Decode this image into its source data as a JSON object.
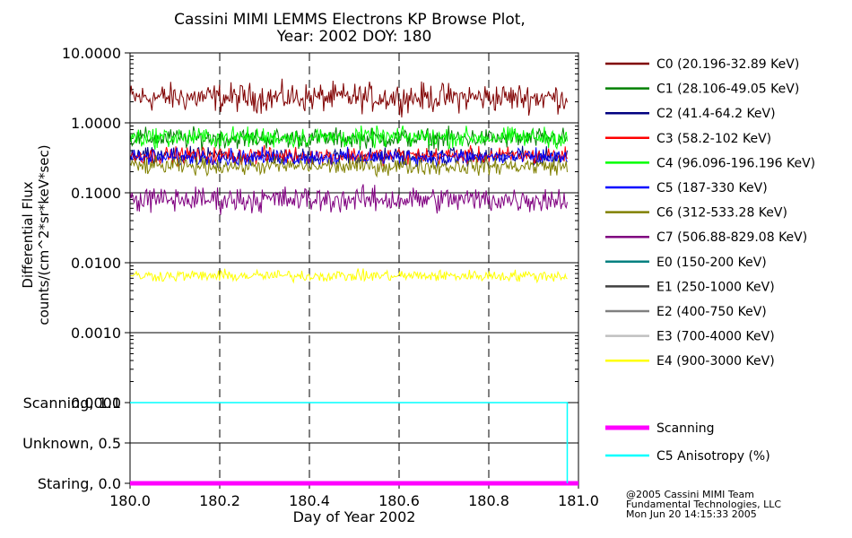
{
  "chart_data": [
    {
      "type": "line",
      "title_line1": "Cassini MIMI LEMMS Electrons KP Browse Plot,",
      "title_line2": "Year: 2002 DOY: 180",
      "ylabel_line1": "Differential Flux",
      "ylabel_line2": "counts/(cm^2*sr*keV*sec)",
      "yscale": "log",
      "ylim": [
        0.0001,
        10.0
      ],
      "yticks": [
        {
          "value": 10.0,
          "label": "10.0000"
        },
        {
          "value": 1.0,
          "label": "1.0000"
        },
        {
          "value": 0.1,
          "label": "0.1000"
        },
        {
          "value": 0.01,
          "label": "0.0100"
        },
        {
          "value": 0.001,
          "label": "0.0010"
        },
        {
          "value": 0.0001,
          "label": "0.0001"
        }
      ],
      "xlim": [
        180.0,
        181.0
      ],
      "grid": true,
      "legend_position": "right",
      "series": [
        {
          "name": "C0 (20.196-32.89 KeV)",
          "color": "#800000",
          "level": 2.3,
          "spread": 0.1
        },
        {
          "name": "C1 (28.106-49.05 KeV)",
          "color": "#008000",
          "level": 0.6,
          "spread": 0.07
        },
        {
          "name": "C2 (41.4-64.2 KeV)",
          "color": "#000080",
          "level": 0.33,
          "spread": 0.06
        },
        {
          "name": "C3 (58.2-102 KeV)",
          "color": "#ff0000",
          "level": 0.34,
          "spread": 0.06
        },
        {
          "name": "C4 (96.096-196.196 KeV)",
          "color": "#00ff00",
          "level": 0.62,
          "spread": 0.07
        },
        {
          "name": "C5 (187-330 KeV)",
          "color": "#0000ff",
          "level": 0.32,
          "spread": 0.06
        },
        {
          "name": "C6 (312-533.28 KeV)",
          "color": "#808000",
          "level": 0.24,
          "spread": 0.06
        },
        {
          "name": "C7 (506.88-829.08 KeV)",
          "color": "#800080",
          "level": 0.08,
          "spread": 0.09
        },
        {
          "name": "E0 (150-200 KeV)",
          "color": "#008080",
          "level": null
        },
        {
          "name": "E1 (250-1000 KeV)",
          "color": "#404040",
          "level": null
        },
        {
          "name": "E2 (400-750 KeV)",
          "color": "#808080",
          "level": null
        },
        {
          "name": "E3 (700-4000 KeV)",
          "color": "#c0c0c0",
          "level": null
        },
        {
          "name": "E4 (900-3000 KeV)",
          "color": "#ffff00",
          "level": 0.0065,
          "spread": 0.04
        }
      ]
    },
    {
      "type": "line",
      "xlabel": "Day of Year 2002",
      "xlim": [
        180.0,
        181.0
      ],
      "xticks": [
        {
          "value": 180.0,
          "label": "180.0"
        },
        {
          "value": 180.2,
          "label": "180.2"
        },
        {
          "value": 180.4,
          "label": "180.4"
        },
        {
          "value": 180.6,
          "label": "180.6"
        },
        {
          "value": 180.8,
          "label": "180.8"
        },
        {
          "value": 181.0,
          "label": "181.0"
        }
      ],
      "ylim": [
        0.0,
        1.0
      ],
      "yticks": [
        {
          "value": 1.0,
          "label": "Scanning, 1.0"
        },
        {
          "value": 0.5,
          "label": "Unknown, 0.5"
        },
        {
          "value": 0.0,
          "label": "Staring, 0.0"
        }
      ],
      "series": [
        {
          "name": "Scanning",
          "color": "#ff00ff",
          "x": [
            180.0,
            181.0
          ],
          "y": [
            0.0,
            0.0
          ]
        },
        {
          "name": "C5 Anisotropy (%)",
          "color": "#00ffff",
          "x": [
            180.0,
            180.975,
            180.975
          ],
          "y": [
            1.0,
            1.0,
            0.0
          ]
        }
      ]
    }
  ],
  "footer": {
    "line1": "@2005 Cassini MIMI Team",
    "line2": "Fundamental Technologies, LLC",
    "line3": "Mon Jun 20 14:15:33 2005"
  }
}
